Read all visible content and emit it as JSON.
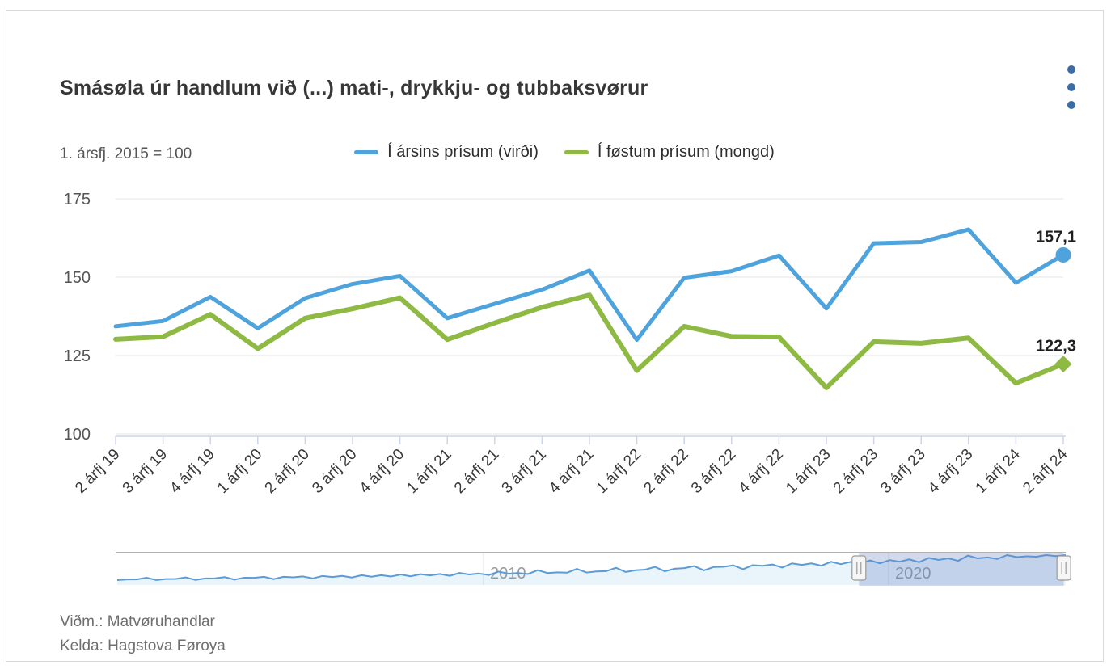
{
  "card": {
    "menu_icon": "kebab-menu-icon"
  },
  "chart_data": {
    "type": "line",
    "title": "Smásøla úr handlum við (...) mati-, drykkju- og tubbaksvørur",
    "subtitle": "1. ársfj. 2015 = 100",
    "categories": [
      "2 árfj 19",
      "3 árfj 19",
      "4 árfj 19",
      "1 árfj 20",
      "2 árfj 20",
      "3 árfj 20",
      "4 árfj 20",
      "1 árfj 21",
      "2 árfj 21",
      "3 árfj 21",
      "4 árfj 21",
      "1 árfj 22",
      "2 árfj 22",
      "3 árfj 22",
      "4 árfj 22",
      "1 árfj 23",
      "2 árfj 23",
      "3 árfj 23",
      "4 árfj 23",
      "1 árfj 24",
      "2 árfj 24"
    ],
    "series": [
      {
        "name": "Í ársins prísum (virði)",
        "color": "#4fa3dc",
        "marker": "circle",
        "last_value_label": "157,1",
        "values": [
          134.3,
          136.0,
          143.7,
          133.7,
          143.3,
          147.8,
          150.4,
          136.9,
          141.5,
          146.0,
          152.1,
          130.0,
          149.8,
          151.9,
          156.9,
          140.0,
          160.8,
          161.2,
          165.2,
          148.2,
          157.1
        ]
      },
      {
        "name": "Í føstum prísum (mongd)",
        "color": "#8eba44",
        "marker": "diamond",
        "last_value_label": "122,3",
        "values": [
          130.2,
          131.0,
          138.1,
          127.2,
          136.9,
          139.9,
          143.4,
          130.1,
          135.4,
          140.4,
          144.3,
          120.2,
          134.3,
          131.1,
          130.9,
          114.7,
          129.4,
          128.9,
          130.6,
          116.2,
          122.3
        ]
      }
    ],
    "ylim": [
      100,
      175
    ],
    "yticks": [
      100,
      125,
      150,
      175
    ],
    "grid": true,
    "legend_position": "top-center",
    "navigator": {
      "axis_labels": [
        "2010",
        "2020"
      ],
      "selection": {
        "from_fraction": 0.782,
        "to_fraction": 0.998
      }
    }
  },
  "colors": {
    "accent_blue": "#4fa3dc",
    "accent_green": "#8eba44",
    "menu_dots": "#3b6ca6",
    "grid": "#e6e6e6",
    "axis_line": "#ccd6eb",
    "navigator_mask": "rgba(102,133,194,0.3)"
  },
  "footer": {
    "note": "Viðm.: Matvøruhandlar",
    "source": "Kelda: Hagstova Føroya"
  }
}
